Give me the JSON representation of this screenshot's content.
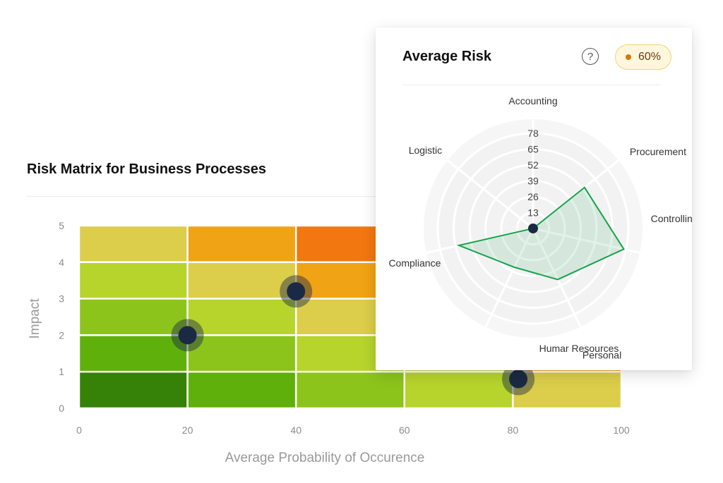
{
  "matrix": {
    "title": "Risk Matrix for Business Processes"
  },
  "radar": {
    "title": "Average Risk",
    "help_icon": "question-circle-icon",
    "badge_value": "60%",
    "badge_color": "#d97706"
  },
  "chart_data": [
    {
      "type": "heatmap",
      "title": "Risk Matrix for Business Processes",
      "xlabel": "Average Probability of Occurence",
      "ylabel": "Impact",
      "x_ticks": [
        "0",
        "20",
        "40",
        "60",
        "80",
        "100"
      ],
      "y_ticks": [
        "0",
        "1",
        "2",
        "3",
        "4",
        "5"
      ],
      "xlim": [
        0,
        100
      ],
      "ylim": [
        0,
        5
      ],
      "grid_rows": [
        "5-4",
        "4-3",
        "3-2",
        "2-1",
        "1-0"
      ],
      "grid_colors": [
        [
          "#dccd4a",
          "#f0a314",
          "#f27710",
          "#f25a0c",
          "#e84a0c"
        ],
        [
          "#b6d42c",
          "#dccd4a",
          "#f0a314",
          "#f27710",
          "#f25a0c"
        ],
        [
          "#8cc41c",
          "#b6d42c",
          "#dccd4a",
          "#f0a314",
          "#f27710"
        ],
        [
          "#60b00c",
          "#8cc41c",
          "#b6d42c",
          "#dccd4a",
          "#f0a314"
        ],
        [
          "#368208",
          "#60b00c",
          "#8cc41c",
          "#b6d42c",
          "#dccd4a"
        ]
      ],
      "points": [
        {
          "x": 20,
          "y": 2
        },
        {
          "x": 40,
          "y": 3.2
        },
        {
          "x": 81,
          "y": 0.8
        }
      ],
      "point_color": "#1b2a44"
    },
    {
      "type": "radar",
      "title": "Average Risk",
      "axes": [
        "Accounting",
        "Procurement",
        "Controlling",
        "Personal",
        "Humar Resources",
        "Compliance",
        "Logistic"
      ],
      "ring_values": [
        "13",
        "26",
        "39",
        "52",
        "65",
        "78"
      ],
      "r_max": 84,
      "values": [
        0,
        58,
        82,
        50,
        38,
        67,
        0
      ],
      "line_color": "#16a34a",
      "fill_color": "rgba(22,163,74,0.13)",
      "center_color": "#1b2a44"
    }
  ]
}
